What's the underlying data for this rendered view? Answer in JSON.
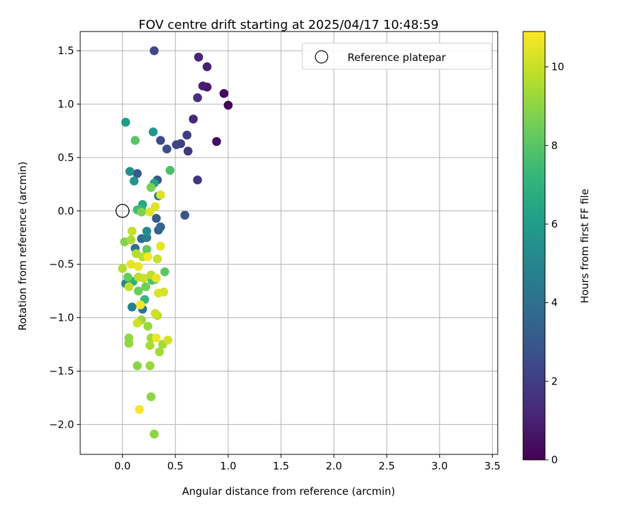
{
  "chart_data": {
    "type": "scatter",
    "title": "FOV centre drift starting at 2025/04/17 10:48:59",
    "xlabel": "Angular distance from reference (arcmin)",
    "ylabel": "Rotation from reference (arcmin)",
    "xlim": [
      -0.4,
      3.55
    ],
    "ylim": [
      -2.28,
      1.68
    ],
    "xticks": [
      0.0,
      0.5,
      1.0,
      1.5,
      2.0,
      2.5,
      3.0,
      3.5
    ],
    "xtick_labels": [
      "0.0",
      "0.5",
      "1.0",
      "1.5",
      "2.0",
      "2.5",
      "3.0",
      "3.5"
    ],
    "yticks": [
      -2.0,
      -1.5,
      -1.0,
      -0.5,
      0.0,
      0.5,
      1.0,
      1.5
    ],
    "ytick_labels": [
      "−2.0",
      "−1.5",
      "−1.0",
      "−0.5",
      "0.0",
      "0.5",
      "1.0",
      "1.5"
    ],
    "grid": true,
    "legend": {
      "placement": "top-right",
      "entries": [
        "Reference platepar"
      ]
    },
    "reference_point": {
      "x": 0.0,
      "y": 0.0
    },
    "colorbar": {
      "label": "Hours from first FF file",
      "min": 0,
      "max": 10.9,
      "ticks": [
        0,
        2,
        4,
        6,
        8,
        10
      ],
      "tick_labels": [
        "0",
        "2",
        "4",
        "6",
        "8",
        "10"
      ],
      "colormap": [
        "#440154",
        "#482878",
        "#3e4989",
        "#31688e",
        "#26828e",
        "#1f9e89",
        "#35b779",
        "#6ece58",
        "#b5de2b",
        "#fde725"
      ]
    },
    "points": [
      {
        "x": 1.0,
        "y": 0.99,
        "h": 0.05
      },
      {
        "x": 0.96,
        "y": 1.1,
        "h": 0.3
      },
      {
        "x": 0.89,
        "y": 0.65,
        "h": 0.4
      },
      {
        "x": 0.8,
        "y": 1.16,
        "h": 0.7
      },
      {
        "x": 0.76,
        "y": 1.17,
        "h": 0.9
      },
      {
        "x": 0.8,
        "y": 1.35,
        "h": 1.0
      },
      {
        "x": 0.72,
        "y": 1.44,
        "h": 1.1
      },
      {
        "x": 0.67,
        "y": 0.86,
        "h": 1.2
      },
      {
        "x": 0.71,
        "y": 1.06,
        "h": 1.5
      },
      {
        "x": 0.71,
        "y": 0.29,
        "h": 1.7
      },
      {
        "x": 0.62,
        "y": 0.56,
        "h": 1.8
      },
      {
        "x": 0.61,
        "y": 0.71,
        "h": 2.0
      },
      {
        "x": 0.55,
        "y": 0.63,
        "h": 2.1
      },
      {
        "x": 0.51,
        "y": 0.62,
        "h": 2.3
      },
      {
        "x": 0.3,
        "y": 1.5,
        "h": 2.4
      },
      {
        "x": 0.36,
        "y": 0.66,
        "h": 2.5
      },
      {
        "x": 0.42,
        "y": 0.58,
        "h": 2.6
      },
      {
        "x": 0.59,
        "y": -0.04,
        "h": 2.9
      },
      {
        "x": 0.33,
        "y": 0.29,
        "h": 3.0
      },
      {
        "x": 0.14,
        "y": 0.35,
        "h": 3.0
      },
      {
        "x": 0.32,
        "y": -0.07,
        "h": 3.2
      },
      {
        "x": 0.36,
        "y": -0.15,
        "h": 3.4
      },
      {
        "x": 0.34,
        "y": -0.18,
        "h": 3.6
      },
      {
        "x": 0.18,
        "y": -0.26,
        "h": 3.8
      },
      {
        "x": 0.12,
        "y": -0.35,
        "h": 4.0
      },
      {
        "x": 0.19,
        "y": -0.92,
        "h": 4.2
      },
      {
        "x": 0.34,
        "y": 0.14,
        "h": 4.4
      },
      {
        "x": 0.23,
        "y": -0.25,
        "h": 4.6
      },
      {
        "x": 0.09,
        "y": -0.9,
        "h": 4.8
      },
      {
        "x": 0.03,
        "y": -0.68,
        "h": 5.0
      },
      {
        "x": 0.23,
        "y": -0.19,
        "h": 5.3
      },
      {
        "x": 0.07,
        "y": 0.37,
        "h": 5.5
      },
      {
        "x": 0.11,
        "y": 0.28,
        "h": 5.6
      },
      {
        "x": 0.29,
        "y": 0.74,
        "h": 5.8
      },
      {
        "x": 0.03,
        "y": 0.83,
        "h": 6.0
      },
      {
        "x": 0.3,
        "y": 0.26,
        "h": 6.2
      },
      {
        "x": 0.19,
        "y": 0.06,
        "h": 6.5
      },
      {
        "x": 0.18,
        "y": 0.02,
        "h": 6.9
      },
      {
        "x": 0.1,
        "y": -0.66,
        "h": 7.0
      },
      {
        "x": 0.21,
        "y": -0.83,
        "h": 7.2
      },
      {
        "x": 0.31,
        "y": -0.64,
        "h": 7.4
      },
      {
        "x": 0.14,
        "y": 0.01,
        "h": 7.5
      },
      {
        "x": 0.45,
        "y": 0.38,
        "h": 7.7
      },
      {
        "x": 0.28,
        "y": -0.65,
        "h": 7.8
      },
      {
        "x": 0.12,
        "y": 0.66,
        "h": 8.0
      },
      {
        "x": 0.4,
        "y": -0.57,
        "h": 8.1
      },
      {
        "x": 0.23,
        "y": -0.36,
        "h": 8.2
      },
      {
        "x": 0.05,
        "y": -0.62,
        "h": 8.3
      },
      {
        "x": 0.15,
        "y": -0.75,
        "h": 8.4
      },
      {
        "x": 0.22,
        "y": -0.71,
        "h": 8.5
      },
      {
        "x": 0.27,
        "y": 0.22,
        "h": 8.6
      },
      {
        "x": 0.18,
        "y": -0.01,
        "h": 8.7
      },
      {
        "x": 0.02,
        "y": -0.29,
        "h": 8.8
      },
      {
        "x": 0.14,
        "y": -1.45,
        "h": 8.9
      },
      {
        "x": 0.27,
        "y": -1.74,
        "h": 9.0
      },
      {
        "x": 0.3,
        "y": -2.09,
        "h": 9.0
      },
      {
        "x": 0.06,
        "y": -1.19,
        "h": 9.1
      },
      {
        "x": 0.06,
        "y": -1.24,
        "h": 9.1
      },
      {
        "x": 0.26,
        "y": -1.45,
        "h": 9.2
      },
      {
        "x": 0.24,
        "y": -1.08,
        "h": 9.2
      },
      {
        "x": 0.18,
        "y": -1.02,
        "h": 9.3
      },
      {
        "x": 0.27,
        "y": -1.19,
        "h": 9.3
      },
      {
        "x": 0.35,
        "y": -1.32,
        "h": 9.4
      },
      {
        "x": 0.38,
        "y": -1.25,
        "h": 9.4
      },
      {
        "x": 0.26,
        "y": -1.26,
        "h": 9.5
      },
      {
        "x": 0.08,
        "y": -0.27,
        "h": 9.5
      },
      {
        "x": 0.13,
        "y": -0.4,
        "h": 9.6
      },
      {
        "x": 0.0,
        "y": -0.54,
        "h": 9.6
      },
      {
        "x": 0.19,
        "y": -0.43,
        "h": 9.7
      },
      {
        "x": 0.33,
        "y": -0.98,
        "h": 9.7
      },
      {
        "x": 0.27,
        "y": -0.6,
        "h": 9.8
      },
      {
        "x": 0.15,
        "y": -0.62,
        "h": 9.8
      },
      {
        "x": 0.06,
        "y": -0.71,
        "h": 9.9
      },
      {
        "x": 0.09,
        "y": -0.19,
        "h": 9.9
      },
      {
        "x": 0.2,
        "y": -0.63,
        "h": 10.0
      },
      {
        "x": 0.33,
        "y": -0.45,
        "h": 10.0
      },
      {
        "x": 0.31,
        "y": -0.96,
        "h": 10.1
      },
      {
        "x": 0.14,
        "y": -1.05,
        "h": 10.1
      },
      {
        "x": 0.43,
        "y": -1.21,
        "h": 10.2
      },
      {
        "x": 0.39,
        "y": -0.76,
        "h": 10.2
      },
      {
        "x": 0.34,
        "y": -0.77,
        "h": 10.3
      },
      {
        "x": 0.36,
        "y": 0.15,
        "h": 10.3
      },
      {
        "x": 0.31,
        "y": 0.04,
        "h": 10.4
      },
      {
        "x": 0.26,
        "y": -0.01,
        "h": 10.4
      },
      {
        "x": 0.36,
        "y": -0.33,
        "h": 10.5
      },
      {
        "x": 0.08,
        "y": -0.5,
        "h": 10.5
      },
      {
        "x": 0.15,
        "y": -0.52,
        "h": 10.6
      },
      {
        "x": 0.32,
        "y": -0.63,
        "h": 10.6
      },
      {
        "x": 0.17,
        "y": -0.88,
        "h": 10.7
      },
      {
        "x": 0.32,
        "y": -1.19,
        "h": 10.7
      },
      {
        "x": 0.16,
        "y": -1.86,
        "h": 10.8
      },
      {
        "x": 0.24,
        "y": -0.43,
        "h": 10.8
      }
    ]
  }
}
